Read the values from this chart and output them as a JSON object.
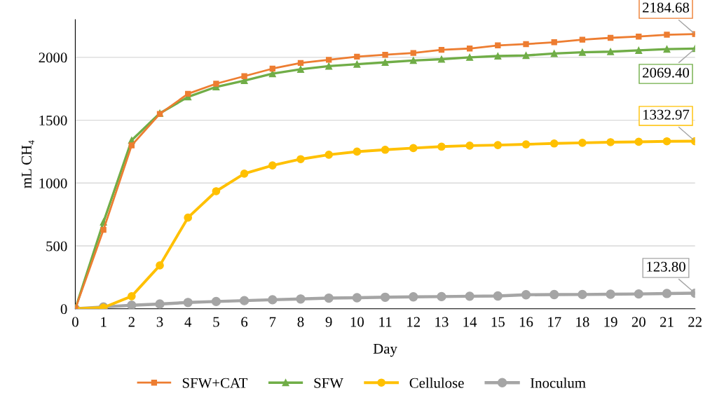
{
  "chart_data": {
    "type": "line",
    "xlabel": "Day",
    "ylabel": "mL CH₄",
    "x": [
      0,
      1,
      2,
      3,
      4,
      5,
      6,
      7,
      8,
      9,
      10,
      11,
      12,
      13,
      14,
      15,
      16,
      17,
      18,
      19,
      20,
      21,
      22
    ],
    "xlim": [
      0,
      22
    ],
    "xticks": [
      0,
      1,
      2,
      3,
      4,
      5,
      6,
      7,
      8,
      9,
      10,
      11,
      12,
      13,
      14,
      15,
      16,
      17,
      18,
      19,
      20,
      21,
      22
    ],
    "ylim": [
      0,
      2300
    ],
    "yticks": [
      0,
      500,
      1000,
      1500,
      2000
    ],
    "grid": "y",
    "legend": "bottom",
    "line_style": "solid",
    "series": [
      {
        "name": "SFW+CAT",
        "color": "#ed7d31",
        "marker": "square",
        "values": [
          0,
          628,
          1300,
          1550,
          1710,
          1790,
          1850,
          1910,
          1955,
          1980,
          2005,
          2020,
          2035,
          2060,
          2070,
          2095,
          2105,
          2120,
          2140,
          2155,
          2165,
          2180,
          2184.68
        ],
        "value_labels": [
          null,
          null,
          null,
          null,
          null,
          null,
          null,
          null,
          null,
          null,
          null,
          null,
          null,
          null,
          null,
          null,
          null,
          null,
          null,
          null,
          null,
          null,
          "2184.68"
        ]
      },
      {
        "name": "SFW",
        "color": "#70ad47",
        "marker": "triangle",
        "values": [
          0,
          690,
          1340,
          1555,
          1685,
          1765,
          1815,
          1870,
          1905,
          1930,
          1945,
          1960,
          1975,
          1985,
          2000,
          2010,
          2015,
          2030,
          2040,
          2045,
          2055,
          2065,
          2069.4
        ],
        "value_labels": [
          null,
          null,
          null,
          null,
          null,
          null,
          null,
          null,
          null,
          null,
          null,
          null,
          null,
          null,
          null,
          null,
          null,
          null,
          null,
          null,
          null,
          null,
          "2069.40"
        ]
      },
      {
        "name": "Cellulose",
        "color": "#ffc000",
        "marker": "circle",
        "values": [
          0,
          10,
          100,
          345,
          725,
          935,
          1075,
          1140,
          1190,
          1225,
          1250,
          1265,
          1278,
          1290,
          1298,
          1302,
          1308,
          1315,
          1320,
          1325,
          1328,
          1332,
          1332.97
        ],
        "value_labels": [
          null,
          null,
          null,
          null,
          null,
          null,
          null,
          null,
          null,
          null,
          null,
          null,
          null,
          null,
          null,
          null,
          null,
          null,
          null,
          null,
          null,
          null,
          "1332.97"
        ]
      },
      {
        "name": "Inoculum",
        "color": "#a5a5a5",
        "marker": "circle",
        "values": [
          0,
          15,
          28,
          38,
          50,
          58,
          65,
          72,
          78,
          85,
          88,
          92,
          95,
          97,
          100,
          102,
          112,
          113,
          114,
          116,
          118,
          122,
          123.8
        ],
        "value_labels": [
          null,
          null,
          null,
          null,
          null,
          null,
          null,
          null,
          null,
          null,
          null,
          null,
          null,
          null,
          null,
          null,
          null,
          null,
          null,
          null,
          null,
          null,
          "123.80"
        ]
      }
    ]
  }
}
